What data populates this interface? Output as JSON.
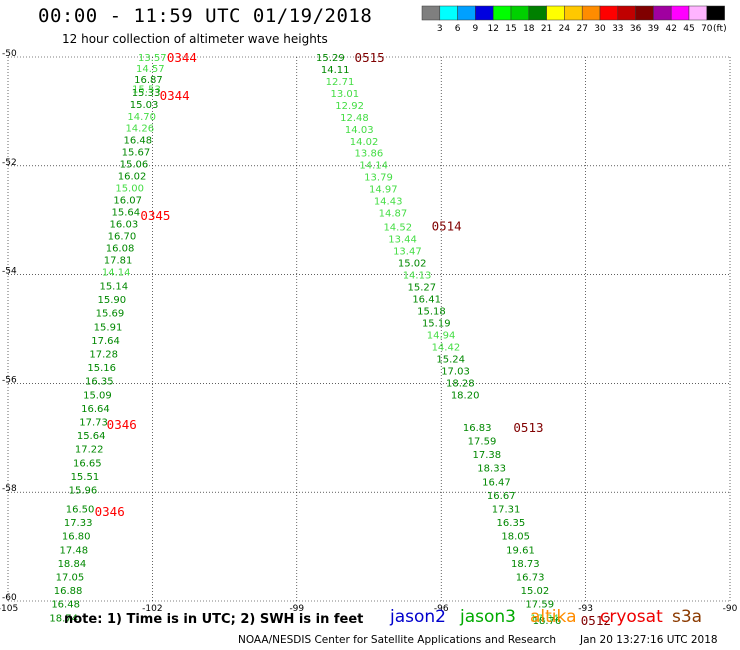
{
  "header": {
    "title": "00:00 - 11:59 UTC 01/19/2018",
    "subtitle": "12 hour collection of altimeter wave heights"
  },
  "legend": {
    "unit": "(ft)",
    "bins": [
      {
        "label": "3",
        "color": "#7f7f7f"
      },
      {
        "label": "6",
        "color": "#00ffff"
      },
      {
        "label": "9",
        "color": "#00a0ff"
      },
      {
        "label": "12",
        "color": "#0000e0"
      },
      {
        "label": "15",
        "color": "#00ff00"
      },
      {
        "label": "18",
        "color": "#00d000"
      },
      {
        "label": "21",
        "color": "#008000"
      },
      {
        "label": "24",
        "color": "#ffff00"
      },
      {
        "label": "27",
        "color": "#ffc800"
      },
      {
        "label": "30",
        "color": "#ff8c00"
      },
      {
        "label": "33",
        "color": "#ff0000"
      },
      {
        "label": "36",
        "color": "#c00000"
      },
      {
        "label": "39",
        "color": "#800000"
      },
      {
        "label": "42",
        "color": "#a000a0"
      },
      {
        "label": "45",
        "color": "#ff00ff"
      },
      {
        "label": "70",
        "color": "#ffb4ff"
      },
      {
        "label": "",
        "color": "#000000"
      }
    ]
  },
  "map": {
    "lon_min": -105,
    "lon_max": -90,
    "lat_min": -60,
    "lat_max": -50,
    "lon_ticks": [
      -105,
      -102,
      -99,
      -96,
      -93,
      -90
    ],
    "lat_ticks": [
      -50,
      -52,
      -54,
      -56,
      -58,
      -60
    ],
    "colors": {
      "light": "#44dd44",
      "dark": "#008800",
      "time_red": "#ff0000",
      "time_dark": "#800000"
    },
    "tracks": [
      {
        "name": "jason3-track-west",
        "points": [
          {
            "lat": -50.0,
            "lon": -102.3,
            "swh": "13.57",
            "shade": "light"
          },
          {
            "lat": -50.2,
            "lon": -102.34,
            "swh": "14.57",
            "shade": "light"
          },
          {
            "lat": -50.4,
            "lon": -102.38,
            "swh": "16.87",
            "shade": "dark"
          },
          {
            "lat": -50.58,
            "lon": -102.42,
            "swh": "15.53",
            "shade": "light"
          },
          {
            "lat": -50.64,
            "lon": -102.43,
            "swh": "15.33",
            "shade": "dark"
          },
          {
            "lat": -50.86,
            "lon": -102.47,
            "swh": "15.03",
            "shade": "dark"
          },
          {
            "lat": -51.08,
            "lon": -102.52,
            "swh": "14.70",
            "shade": "light"
          },
          {
            "lat": -51.3,
            "lon": -102.56,
            "swh": "14.26",
            "shade": "light"
          },
          {
            "lat": -51.52,
            "lon": -102.6,
            "swh": "16.48",
            "shade": "dark"
          },
          {
            "lat": -51.74,
            "lon": -102.64,
            "swh": "15.67",
            "shade": "dark"
          },
          {
            "lat": -51.96,
            "lon": -102.68,
            "swh": "15.06",
            "shade": "dark"
          },
          {
            "lat": -52.18,
            "lon": -102.72,
            "swh": "16.02",
            "shade": "dark"
          },
          {
            "lat": -52.4,
            "lon": -102.77,
            "swh": "15.00",
            "shade": "light"
          },
          {
            "lat": -52.62,
            "lon": -102.81,
            "swh": "16.07",
            "shade": "dark"
          },
          {
            "lat": -52.84,
            "lon": -102.85,
            "swh": "15.64",
            "shade": "dark"
          },
          {
            "lat": -53.06,
            "lon": -102.89,
            "swh": "16.03",
            "shade": "dark"
          },
          {
            "lat": -53.28,
            "lon": -102.93,
            "swh": "16.70",
            "shade": "dark"
          },
          {
            "lat": -53.5,
            "lon": -102.97,
            "swh": "16.08",
            "shade": "dark"
          },
          {
            "lat": -53.72,
            "lon": -103.01,
            "swh": "17.81",
            "shade": "dark"
          },
          {
            "lat": -53.94,
            "lon": -103.05,
            "swh": "14.14",
            "shade": "light"
          },
          {
            "lat": -54.2,
            "lon": -103.1,
            "swh": "15.14",
            "shade": "dark"
          },
          {
            "lat": -54.45,
            "lon": -103.14,
            "swh": "15.90",
            "shade": "dark"
          },
          {
            "lat": -54.7,
            "lon": -103.18,
            "swh": "15.69",
            "shade": "dark"
          },
          {
            "lat": -54.95,
            "lon": -103.22,
            "swh": "15.91",
            "shade": "dark"
          },
          {
            "lat": -55.2,
            "lon": -103.27,
            "swh": "17.64",
            "shade": "dark"
          },
          {
            "lat": -55.45,
            "lon": -103.31,
            "swh": "17.28",
            "shade": "dark"
          },
          {
            "lat": -55.7,
            "lon": -103.35,
            "swh": "15.16",
            "shade": "dark"
          },
          {
            "lat": -55.95,
            "lon": -103.4,
            "swh": "16.35",
            "shade": "dark"
          },
          {
            "lat": -56.2,
            "lon": -103.44,
            "swh": "15.09",
            "shade": "dark"
          },
          {
            "lat": -56.45,
            "lon": -103.48,
            "swh": "16.64",
            "shade": "dark"
          },
          {
            "lat": -56.7,
            "lon": -103.52,
            "swh": "17.73",
            "shade": "dark"
          },
          {
            "lat": -56.95,
            "lon": -103.57,
            "swh": "15.64",
            "shade": "dark"
          },
          {
            "lat": -57.2,
            "lon": -103.61,
            "swh": "17.22",
            "shade": "dark"
          },
          {
            "lat": -57.45,
            "lon": -103.65,
            "swh": "16.65",
            "shade": "dark"
          },
          {
            "lat": -57.7,
            "lon": -103.7,
            "swh": "15.51",
            "shade": "dark"
          },
          {
            "lat": -57.95,
            "lon": -103.74,
            "swh": "15.96",
            "shade": "dark"
          },
          {
            "lat": -58.3,
            "lon": -103.8,
            "swh": "16.50",
            "shade": "dark"
          },
          {
            "lat": -58.55,
            "lon": -103.84,
            "swh": "17.33",
            "shade": "dark"
          },
          {
            "lat": -58.8,
            "lon": -103.88,
            "swh": "16.80",
            "shade": "dark"
          },
          {
            "lat": -59.05,
            "lon": -103.93,
            "swh": "17.48",
            "shade": "dark"
          },
          {
            "lat": -59.3,
            "lon": -103.97,
            "swh": "18.84",
            "shade": "dark"
          },
          {
            "lat": -59.55,
            "lon": -104.01,
            "swh": "17.05",
            "shade": "dark"
          },
          {
            "lat": -59.8,
            "lon": -104.05,
            "swh": "16.88",
            "shade": "dark"
          },
          {
            "lat": -60.05,
            "lon": -104.1,
            "swh": "16.48",
            "shade": "dark"
          },
          {
            "lat": -60.3,
            "lon": -104.14,
            "swh": "18.74",
            "shade": "dark"
          }
        ],
        "times": [
          {
            "lat": -50.0,
            "lon": -101.7,
            "label": "0344",
            "tone": "red"
          },
          {
            "lat": -50.7,
            "lon": -101.85,
            "label": "0344",
            "tone": "red"
          },
          {
            "lat": -52.9,
            "lon": -102.25,
            "label": "0345",
            "tone": "red"
          },
          {
            "lat": -56.75,
            "lon": -102.95,
            "label": "0346",
            "tone": "red"
          },
          {
            "lat": -58.35,
            "lon": -103.2,
            "label": "0346",
            "tone": "red"
          }
        ]
      },
      {
        "name": "jason3-track-east",
        "points": [
          {
            "lat": -50.0,
            "lon": -98.6,
            "swh": "15.29",
            "shade": "dark"
          },
          {
            "lat": -50.22,
            "lon": -98.5,
            "swh": "14.11",
            "shade": "dark"
          },
          {
            "lat": -50.44,
            "lon": -98.4,
            "swh": "12.71",
            "shade": "light"
          },
          {
            "lat": -50.66,
            "lon": -98.3,
            "swh": "13.01",
            "shade": "light"
          },
          {
            "lat": -50.88,
            "lon": -98.2,
            "swh": "12.92",
            "shade": "light"
          },
          {
            "lat": -51.1,
            "lon": -98.1,
            "swh": "12.48",
            "shade": "light"
          },
          {
            "lat": -51.32,
            "lon": -98.0,
            "swh": "14.03",
            "shade": "light"
          },
          {
            "lat": -51.54,
            "lon": -97.9,
            "swh": "14.02",
            "shade": "light"
          },
          {
            "lat": -51.76,
            "lon": -97.8,
            "swh": "13.86",
            "shade": "light"
          },
          {
            "lat": -51.98,
            "lon": -97.7,
            "swh": "14.14",
            "shade": "light"
          },
          {
            "lat": -52.2,
            "lon": -97.6,
            "swh": "13.79",
            "shade": "light"
          },
          {
            "lat": -52.42,
            "lon": -97.5,
            "swh": "14.97",
            "shade": "light"
          },
          {
            "lat": -52.64,
            "lon": -97.4,
            "swh": "14.43",
            "shade": "light"
          },
          {
            "lat": -52.86,
            "lon": -97.3,
            "swh": "14.87",
            "shade": "light"
          },
          {
            "lat": -53.12,
            "lon": -97.2,
            "swh": "14.52",
            "shade": "light"
          },
          {
            "lat": -53.34,
            "lon": -97.1,
            "swh": "13.44",
            "shade": "light"
          },
          {
            "lat": -53.56,
            "lon": -97.0,
            "swh": "13.47",
            "shade": "light"
          },
          {
            "lat": -53.78,
            "lon": -96.9,
            "swh": "15.02",
            "shade": "dark"
          },
          {
            "lat": -54.0,
            "lon": -96.8,
            "swh": "14.13",
            "shade": "light"
          },
          {
            "lat": -54.22,
            "lon": -96.7,
            "swh": "15.27",
            "shade": "dark"
          },
          {
            "lat": -54.44,
            "lon": -96.6,
            "swh": "16.41",
            "shade": "dark"
          },
          {
            "lat": -54.66,
            "lon": -96.5,
            "swh": "15.18",
            "shade": "dark"
          },
          {
            "lat": -54.88,
            "lon": -96.4,
            "swh": "15.19",
            "shade": "dark"
          },
          {
            "lat": -55.1,
            "lon": -96.3,
            "swh": "14.94",
            "shade": "light"
          },
          {
            "lat": -55.32,
            "lon": -96.2,
            "swh": "14.42",
            "shade": "light"
          },
          {
            "lat": -55.54,
            "lon": -96.1,
            "swh": "15.24",
            "shade": "dark"
          },
          {
            "lat": -55.76,
            "lon": -96.0,
            "swh": "17.03",
            "shade": "dark"
          },
          {
            "lat": -55.98,
            "lon": -95.9,
            "swh": "18.28",
            "shade": "dark"
          },
          {
            "lat": -56.2,
            "lon": -95.8,
            "swh": "18.20",
            "shade": "dark"
          },
          {
            "lat": -56.8,
            "lon": -95.55,
            "swh": "16.83",
            "shade": "dark"
          },
          {
            "lat": -57.05,
            "lon": -95.45,
            "swh": "17.59",
            "shade": "dark"
          },
          {
            "lat": -57.3,
            "lon": -95.35,
            "swh": "17.38",
            "shade": "dark"
          },
          {
            "lat": -57.55,
            "lon": -95.25,
            "swh": "18.33",
            "shade": "dark"
          },
          {
            "lat": -57.8,
            "lon": -95.15,
            "swh": "16.47",
            "shade": "dark"
          },
          {
            "lat": -58.05,
            "lon": -95.05,
            "swh": "16.67",
            "shade": "dark"
          },
          {
            "lat": -58.3,
            "lon": -94.95,
            "swh": "17.31",
            "shade": "dark"
          },
          {
            "lat": -58.55,
            "lon": -94.85,
            "swh": "16.35",
            "shade": "dark"
          },
          {
            "lat": -58.8,
            "lon": -94.75,
            "swh": "18.05",
            "shade": "dark"
          },
          {
            "lat": -59.05,
            "lon": -94.65,
            "swh": "19.61",
            "shade": "dark"
          },
          {
            "lat": -59.3,
            "lon": -94.55,
            "swh": "18.73",
            "shade": "dark"
          },
          {
            "lat": -59.55,
            "lon": -94.45,
            "swh": "16.73",
            "shade": "dark"
          },
          {
            "lat": -59.8,
            "lon": -94.35,
            "swh": "15.02",
            "shade": "dark"
          },
          {
            "lat": -60.05,
            "lon": -94.25,
            "swh": "17.59",
            "shade": "dark"
          },
          {
            "lat": -60.3,
            "lon": -94.15,
            "swh": "17.34",
            "shade": "light"
          },
          {
            "lat": -60.35,
            "lon": -94.1,
            "swh": "18.76",
            "shade": "dark"
          }
        ],
        "times": [
          {
            "lat": -50.0,
            "lon": -97.8,
            "label": "0515",
            "tone": "dark"
          },
          {
            "lat": -53.1,
            "lon": -96.2,
            "label": "0514",
            "tone": "dark"
          },
          {
            "lat": -56.8,
            "lon": -94.5,
            "label": "0513",
            "tone": "dark"
          },
          {
            "lat": -60.35,
            "lon": -93.1,
            "label": "0512",
            "tone": "dark"
          }
        ]
      }
    ]
  },
  "footer": {
    "note": "note: 1) Time is in UTC; 2) SWH is in feet",
    "satellites": [
      {
        "name": "jason2",
        "color": "#0000cc"
      },
      {
        "name": "jason3",
        "color": "#00aa00"
      },
      {
        "name": "altika",
        "color": "#ff8c00"
      },
      {
        "name": "cryosat",
        "color": "#ee0000"
      },
      {
        "name": "s3a",
        "color": "#8b3a00"
      }
    ],
    "credit": "NOAA/NESDIS Center for Satellite Applications and Research",
    "timestamp": "Jan 20 13:27:16 UTC 2018"
  }
}
